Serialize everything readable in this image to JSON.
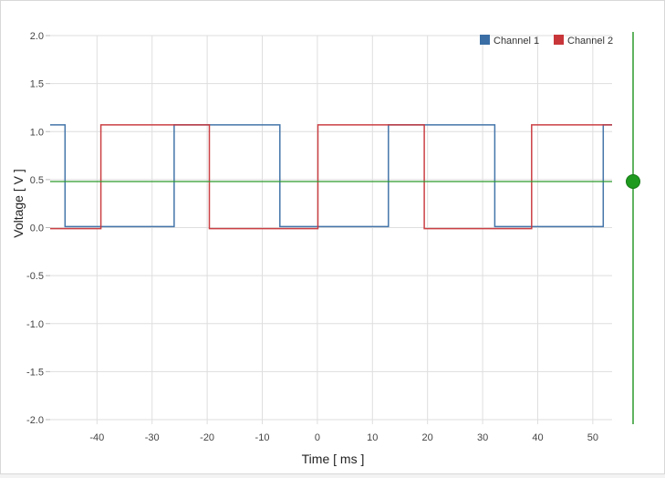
{
  "chart_data": {
    "type": "line",
    "title": "",
    "xlabel": "Time [ ms ]",
    "ylabel": "Voltage [ V ]",
    "xlim": [
      -48.5,
      53.5
    ],
    "ylim": [
      -2.0,
      2.0
    ],
    "xticks": [
      -40,
      -30,
      -20,
      -10,
      0,
      10,
      20,
      30,
      40,
      50
    ],
    "xtick_labels": [
      "-40",
      "-30",
      "-20",
      "-10",
      "0",
      "10",
      "20",
      "30",
      "40",
      "50"
    ],
    "yticks": [
      2.0,
      1.5,
      1.0,
      0.5,
      0.0,
      -0.5,
      -1.0,
      -1.5,
      -2.0
    ],
    "ytick_labels": [
      "2.0",
      "1.5",
      "1.0",
      "0.5",
      "0.0",
      "-0.5",
      "-1.0",
      "-1.5",
      "-2.0"
    ],
    "grid": true,
    "legend_position": "top-right",
    "series": [
      {
        "name": "Channel 1",
        "color": "#3a6ea5",
        "x": [
          -48.5,
          -45.8,
          -45.8,
          -26.0,
          -26.0,
          -6.8,
          -6.8,
          12.9,
          12.9,
          32.2,
          32.2,
          51.9,
          51.9,
          53.5
        ],
        "y": [
          1.07,
          1.07,
          0.01,
          0.01,
          1.07,
          1.07,
          0.01,
          0.01,
          1.07,
          1.07,
          0.01,
          0.01,
          1.07,
          1.07
        ]
      },
      {
        "name": "Channel 2",
        "color": "#c8363a",
        "x": [
          -48.5,
          -39.3,
          -39.3,
          -19.6,
          -19.6,
          0.1,
          0.1,
          19.4,
          19.4,
          38.9,
          38.9,
          53.5
        ],
        "y": [
          -0.01,
          -0.01,
          1.07,
          1.07,
          -0.01,
          -0.01,
          1.07,
          1.07,
          -0.01,
          -0.01,
          1.07,
          1.07
        ]
      }
    ],
    "trigger_level": 0.48,
    "trigger_color": "#2d9a2d"
  }
}
